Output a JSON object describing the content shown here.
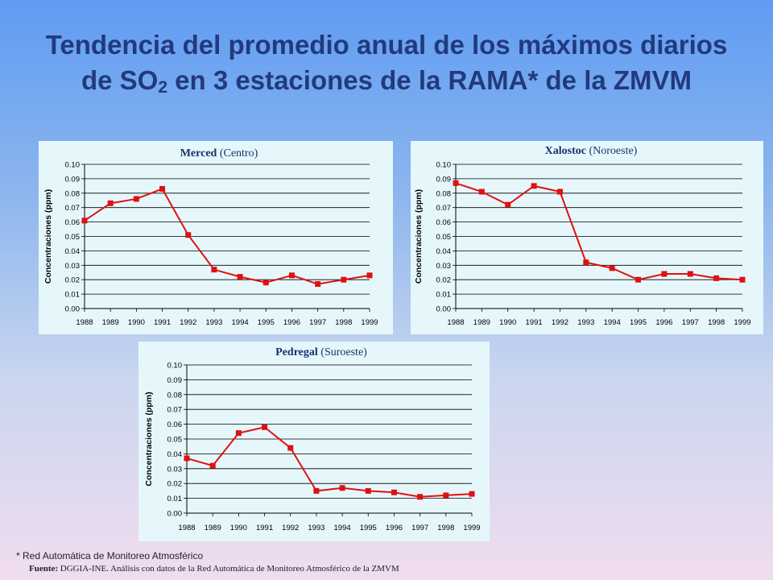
{
  "slide": {
    "title_pre": "Tendencia del promedio anual de los máximos diarios de SO",
    "title_sub": "2",
    "title_post": " en 3 estaciones de la RAMA* de la ZMVM",
    "footnote": "* Red Automática de Monitoreo Atmosférico",
    "source_label": "Fuente:",
    "source_text": " DGGIA-INE.  Análisis con datos de la Red Automática de Monitoreo Atmosférico de la ZMVM"
  },
  "colors": {
    "line": "#e01010",
    "panel_bg": "#e6f7fb",
    "title": "#223a7c"
  },
  "chart_data": [
    {
      "type": "line",
      "title_bold": "Merced",
      "title_rest": " (Centro)",
      "ylabel": "Concentraciones  (ppm)",
      "categories": [
        "1988",
        "1989",
        "1990",
        "1991",
        "1992",
        "1993",
        "1994",
        "1995",
        "1996",
        "1997",
        "1998",
        "1999"
      ],
      "values": [
        0.061,
        0.073,
        0.076,
        0.083,
        0.051,
        0.027,
        0.022,
        0.018,
        0.023,
        0.017,
        0.02,
        0.023
      ],
      "ylim": [
        0,
        0.1
      ],
      "yticks": [
        "0.00",
        "0.01",
        "0.02",
        "0.03",
        "0.04",
        "0.05",
        "0.06",
        "0.07",
        "0.08",
        "0.09",
        "0.10"
      ],
      "grid": true
    },
    {
      "type": "line",
      "title_bold": "Xalostoc",
      "title_rest": " (Noroeste)",
      "ylabel": "Concentraciones  (ppm)",
      "categories": [
        "1988",
        "1989",
        "1990",
        "1991",
        "1992",
        "1993",
        "1994",
        "1995",
        "1996",
        "1997",
        "1998",
        "1999"
      ],
      "values": [
        0.087,
        0.081,
        0.072,
        0.085,
        0.081,
        0.032,
        0.028,
        0.02,
        0.024,
        0.024,
        0.021,
        0.02
      ],
      "ylim": [
        0,
        0.1
      ],
      "yticks": [
        "0.00",
        "0.01",
        "0.02",
        "0.03",
        "0.04",
        "0.05",
        "0.06",
        "0.07",
        "0.08",
        "0.09",
        "0.10"
      ],
      "grid": true
    },
    {
      "type": "line",
      "title_bold": "Pedregal",
      "title_rest": " (Suroeste)",
      "ylabel": "Concentraciones  (ppm)",
      "categories": [
        "1988",
        "1989",
        "1990",
        "1991",
        "1992",
        "1993",
        "1994",
        "1995",
        "1996",
        "1997",
        "1998",
        "1999"
      ],
      "values": [
        0.037,
        0.032,
        0.054,
        0.058,
        0.044,
        0.015,
        0.017,
        0.015,
        0.014,
        0.011,
        0.012,
        0.013
      ],
      "ylim": [
        0,
        0.1
      ],
      "yticks": [
        "0.00",
        "0.01",
        "0.02",
        "0.03",
        "0.04",
        "0.05",
        "0.06",
        "0.07",
        "0.08",
        "0.09",
        "0.10"
      ],
      "grid": true
    }
  ]
}
